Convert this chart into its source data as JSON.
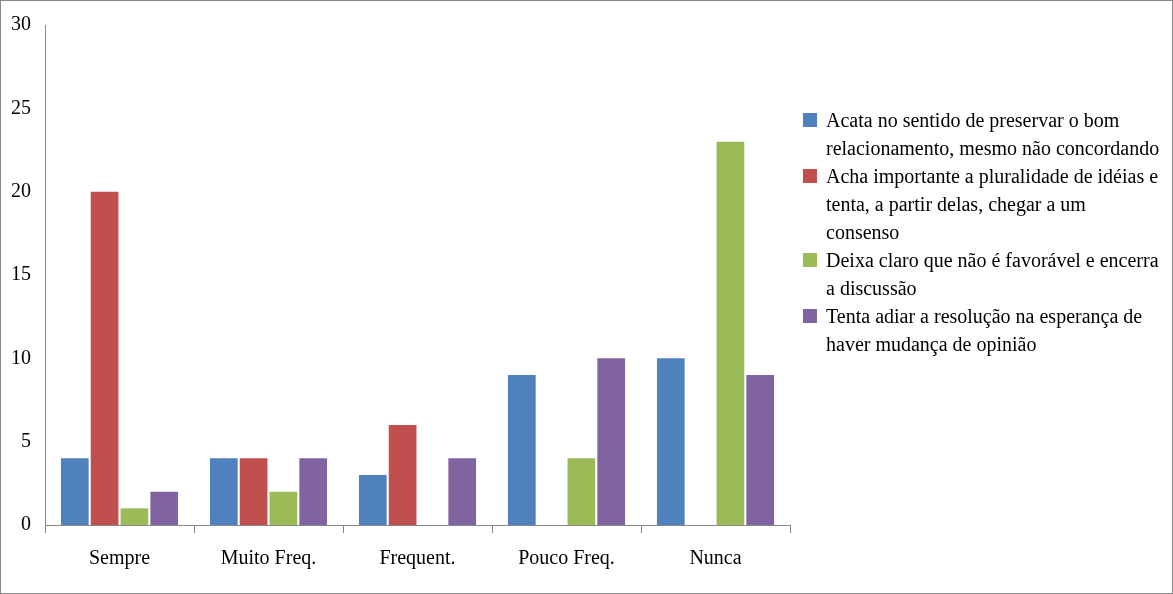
{
  "chart_data": {
    "type": "bar",
    "categories": [
      "Sempre",
      "Muito Freq.",
      "Frequent.",
      "Pouco Freq.",
      "Nunca"
    ],
    "series": [
      {
        "name": "Acata no sentido de preservar o bom relacionamento, mesmo não concordando",
        "color": "#4f81bd",
        "values": [
          4,
          4,
          3,
          9,
          10
        ]
      },
      {
        "name": "Acha importante a pluralidade de idéias e tenta, a partir delas, chegar a um consenso",
        "color": "#c0504d",
        "values": [
          20,
          4,
          6,
          0,
          0
        ]
      },
      {
        "name": "Deixa claro que não é favorável e encerra a discussão",
        "color": "#9bbb59",
        "values": [
          1,
          2,
          0,
          4,
          23
        ]
      },
      {
        "name": "Tenta adiar a resolução na esperança de haver mudança de opinião",
        "color": "#8064a2",
        "values": [
          2,
          4,
          4,
          10,
          9
        ]
      }
    ],
    "ylim": [
      0,
      30
    ],
    "yticks": [
      0,
      5,
      10,
      15,
      20,
      25,
      30
    ],
    "grid": false,
    "legend": "right"
  }
}
